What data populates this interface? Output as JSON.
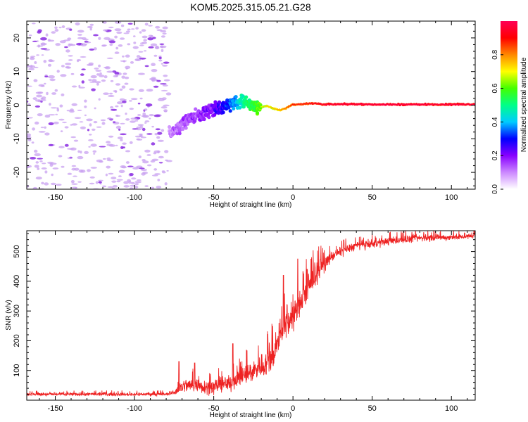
{
  "title": "KOM5.2025.315.05.21.G28",
  "chart_data": [
    {
      "type": "heatmap",
      "name": "spectrogram",
      "title": "KOM5.2025.315.05.21.G28",
      "xlabel": "Height of straight line (km)",
      "ylabel": "Frequency (Hz)",
      "xlim": [
        -168,
        115
      ],
      "ylim": [
        -25,
        25
      ],
      "xticks": [
        -150,
        -100,
        -50,
        0,
        50,
        100
      ],
      "xtick_labels": [
        "-150",
        "-100",
        "-50",
        "0",
        "50",
        "100"
      ],
      "yticks": [
        -20,
        -10,
        0,
        10,
        20
      ],
      "ytick_labels": [
        "-20",
        "-10",
        "0",
        "10",
        "20"
      ],
      "noise_region_x": [
        -168,
        -78
      ],
      "ridge": {
        "x": [
          -78,
          -75,
          -72,
          -68,
          -64,
          -60,
          -56,
          -52,
          -48,
          -44,
          -40,
          -36,
          -32,
          -28,
          -24,
          -20,
          -16,
          -12,
          -8,
          -4,
          0,
          5,
          10,
          15,
          20,
          30,
          40,
          50,
          60,
          70,
          80,
          90,
          100,
          115
        ],
        "freq": [
          -8,
          -7.5,
          -6.5,
          -5,
          -3.5,
          -3,
          -2.5,
          -1.5,
          -1,
          -0.5,
          0.3,
          1,
          0.8,
          0.5,
          -0.5,
          -0.5,
          -0.3,
          -1,
          -1.5,
          -0.8,
          0.2,
          0.3,
          0.5,
          0.5,
          0.2,
          0.3,
          0.3,
          0.2,
          0.2,
          0.2,
          0.2,
          0.2,
          0.2,
          0.2
        ],
        "amplitude": [
          0.1,
          0.12,
          0.12,
          0.15,
          0.15,
          0.17,
          0.2,
          0.2,
          0.25,
          0.3,
          0.35,
          0.4,
          0.5,
          0.55,
          0.6,
          0.65,
          0.7,
          0.72,
          0.75,
          0.8,
          0.85,
          0.88,
          0.9,
          0.92,
          0.93,
          0.95,
          0.96,
          0.97,
          0.97,
          0.97,
          0.96,
          0.95,
          0.96,
          0.96
        ]
      },
      "colorbar": {
        "label": "Normalized spectral amplitude",
        "range": [
          0,
          1
        ],
        "ticks": [
          0.0,
          0.2,
          0.4,
          0.6,
          0.8
        ],
        "tick_labels": [
          "0.0",
          "0.2",
          "0.4",
          "0.6",
          "0.8"
        ],
        "colors": [
          "#ffffff",
          "#cc88ff",
          "#8800ff",
          "#0000ff",
          "#00ccff",
          "#00ff88",
          "#44ff00",
          "#ffff00",
          "#ff8800",
          "#ff0000",
          "#ff0055"
        ]
      }
    },
    {
      "type": "line",
      "name": "snr",
      "xlabel": "Height of straight line (km)",
      "ylabel": "SNR (v/v)",
      "xlim": [
        -168,
        115
      ],
      "ylim": [
        0,
        570
      ],
      "xticks": [
        -150,
        -100,
        -50,
        0,
        50,
        100
      ],
      "xtick_labels": [
        "-150",
        "-100",
        "-50",
        "0",
        "50",
        "100"
      ],
      "yticks": [
        100,
        200,
        300,
        400,
        500
      ],
      "ytick_labels": [
        "100",
        "200",
        "300",
        "400",
        "500"
      ],
      "color": "#ee2222",
      "series": [
        {
          "name": "SNR",
          "x": [
            -168,
            -150,
            -120,
            -100,
            -80,
            -75,
            -72,
            -68,
            -65,
            -60,
            -55,
            -50,
            -45,
            -40,
            -35,
            -30,
            -25,
            -20,
            -15,
            -10,
            -7,
            -4,
            -2,
            0,
            3,
            6,
            10,
            15,
            20,
            25,
            30,
            40,
            50,
            60,
            80,
            100,
            115
          ],
          "values": [
            20,
            20,
            20,
            20,
            20,
            25,
            40,
            50,
            50,
            50,
            45,
            45,
            55,
            55,
            75,
            85,
            100,
            115,
            130,
            175,
            240,
            255,
            270,
            280,
            310,
            340,
            380,
            430,
            460,
            485,
            500,
            520,
            525,
            535,
            545,
            548,
            552
          ]
        }
      ],
      "noise_amplitude": [
        {
          "x": -168,
          "amp": 6
        },
        {
          "x": -75,
          "amp": 6
        },
        {
          "x": -72,
          "amp": 25
        },
        {
          "x": -40,
          "amp": 30
        },
        {
          "x": -10,
          "amp": 55
        },
        {
          "x": 10,
          "amp": 50
        },
        {
          "x": 25,
          "amp": 18
        },
        {
          "x": 115,
          "amp": 10
        }
      ],
      "spikes": [
        {
          "x": -72,
          "value": 130
        },
        {
          "x": -62,
          "value": 125
        },
        {
          "x": -38,
          "value": 190
        },
        {
          "x": -6,
          "value": 420
        },
        {
          "x": 3,
          "value": 475
        },
        {
          "x": 9,
          "value": 440
        }
      ]
    }
  ]
}
